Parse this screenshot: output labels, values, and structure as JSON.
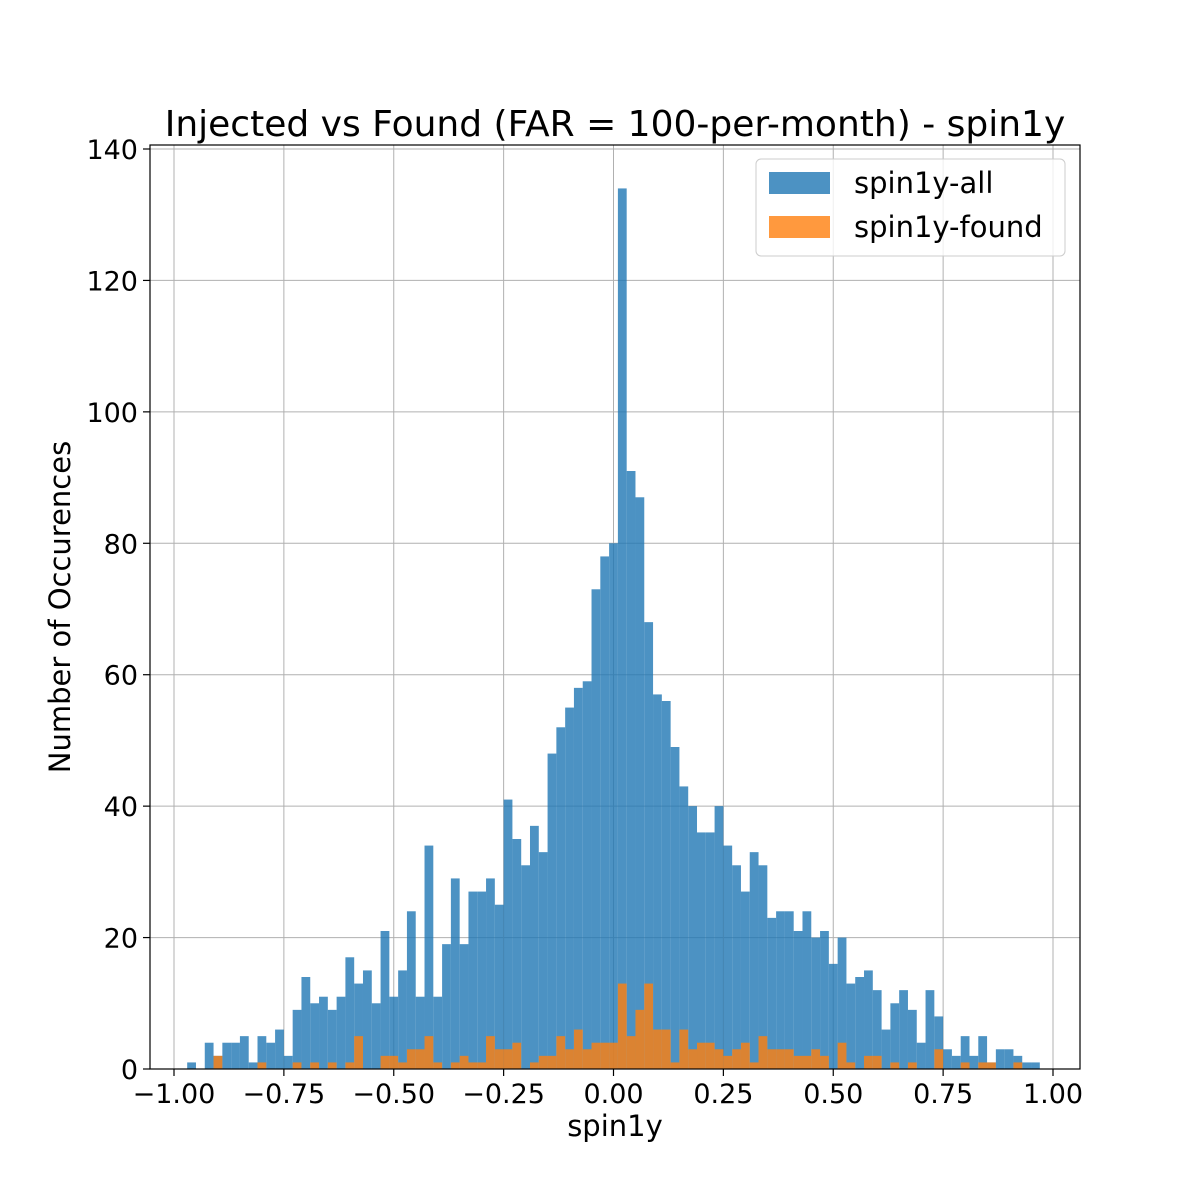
{
  "chart_data": {
    "type": "bar",
    "subtype": "histogram-overlay",
    "title": "Injected vs Found (FAR = 100-per-month) - spin1y",
    "xlabel": "spin1y",
    "ylabel": "Number of Occurences",
    "xlim": [
      -1.0,
      1.0
    ],
    "ylim": [
      0,
      140
    ],
    "xticks": [
      -1.0,
      -0.75,
      -0.5,
      -0.25,
      0.0,
      0.25,
      0.5,
      0.75,
      1.0
    ],
    "xtick_labels": [
      "−1.00",
      "−0.75",
      "−0.50",
      "−0.25",
      "0.00",
      "0.25",
      "0.50",
      "0.75",
      "1.00"
    ],
    "yticks": [
      0,
      20,
      40,
      60,
      80,
      100,
      120,
      140
    ],
    "ytick_labels": [
      "0",
      "20",
      "40",
      "60",
      "80",
      "100",
      "120",
      "140"
    ],
    "grid": true,
    "legend_position": "upper right",
    "bin_start": -0.97,
    "bin_width": 0.02,
    "series": [
      {
        "name": "spin1y-all",
        "color": "#1f77b4",
        "alpha": 0.8,
        "values": [
          1,
          0,
          4,
          2,
          4,
          4,
          5,
          1,
          5,
          4,
          6,
          2,
          9,
          14,
          10,
          11,
          9,
          11,
          17,
          13,
          15,
          10,
          21,
          11,
          15,
          24,
          11,
          34,
          11,
          19,
          29,
          19,
          27,
          27,
          29,
          25,
          41,
          35,
          31,
          37,
          33,
          48,
          52,
          55,
          58,
          59,
          73,
          78,
          80,
          134,
          91,
          87,
          68,
          57,
          56,
          49,
          43,
          40,
          36,
          36,
          40,
          34,
          31,
          27,
          33,
          31,
          23,
          24,
          24,
          21,
          24,
          20,
          21,
          16,
          20,
          13,
          14,
          15,
          12,
          6,
          10,
          12,
          9,
          4,
          12,
          8,
          3,
          2,
          5,
          2,
          5,
          1,
          3,
          3,
          2,
          1,
          1
        ]
      },
      {
        "name": "spin1y-found",
        "color": "#ff7f0e",
        "alpha": 0.8,
        "values": [
          0,
          0,
          0,
          2,
          0,
          0,
          0,
          0,
          1,
          0,
          0,
          0,
          1,
          0,
          1,
          0,
          1,
          0,
          1,
          5,
          0,
          0,
          2,
          2,
          1,
          3,
          3,
          5,
          1,
          0,
          1,
          2,
          1,
          1,
          5,
          3,
          3,
          4,
          0,
          1,
          2,
          2,
          5,
          3,
          6,
          3,
          4,
          4,
          4,
          13,
          5,
          9,
          13,
          6,
          6,
          1,
          6,
          3,
          4,
          4,
          3,
          2,
          3,
          4,
          1,
          5,
          3,
          3,
          3,
          2,
          2,
          3,
          2,
          0,
          4,
          1,
          0,
          2,
          2,
          0,
          1,
          0,
          1,
          0,
          0,
          3,
          0,
          0,
          1,
          0,
          1,
          1,
          0,
          0,
          1,
          0,
          0
        ]
      }
    ]
  }
}
